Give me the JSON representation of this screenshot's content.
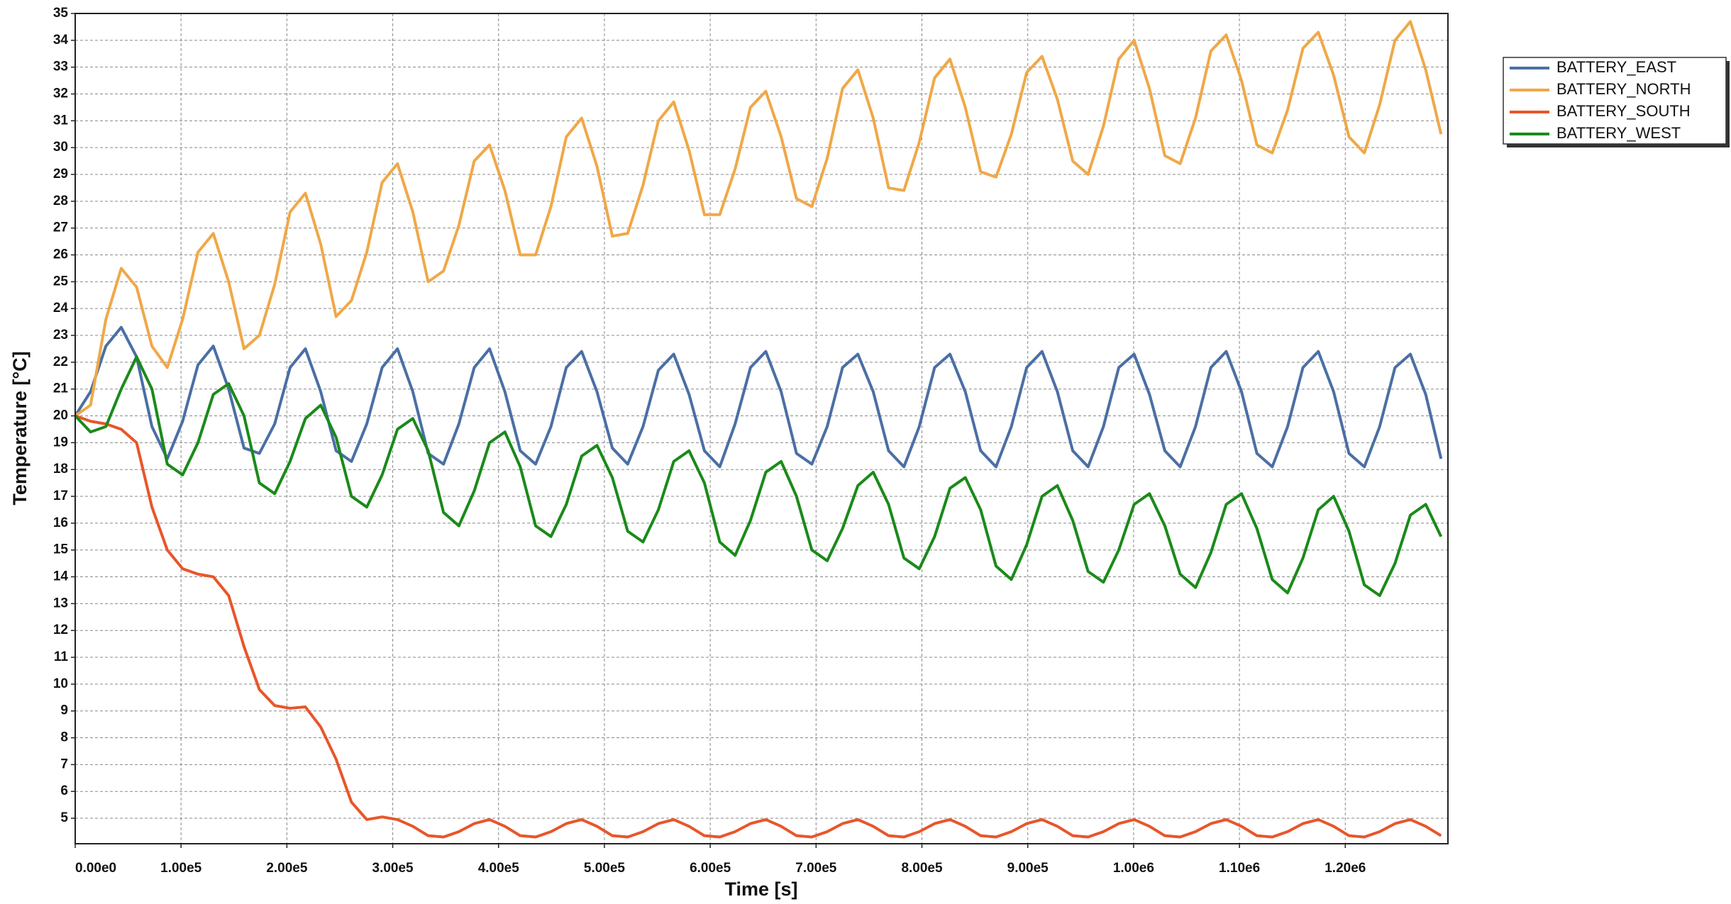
{
  "chart_data": {
    "type": "line",
    "xlabel": "Time [s]",
    "ylabel": "Temperature [°C]",
    "xlim": [
      0,
      1297000
    ],
    "ylim": [
      4.05,
      35
    ],
    "xticks": [
      {
        "value": 0,
        "label": "0.00e0"
      },
      {
        "value": 100000,
        "label": "1.00e5"
      },
      {
        "value": 200000,
        "label": "2.00e5"
      },
      {
        "value": 300000,
        "label": "3.00e5"
      },
      {
        "value": 400000,
        "label": "4.00e5"
      },
      {
        "value": 500000,
        "label": "5.00e5"
      },
      {
        "value": 600000,
        "label": "6.00e5"
      },
      {
        "value": 700000,
        "label": "7.00e5"
      },
      {
        "value": 800000,
        "label": "8.00e5"
      },
      {
        "value": 900000,
        "label": "9.00e5"
      },
      {
        "value": 1000000,
        "label": "1.00e6"
      },
      {
        "value": 1100000,
        "label": "1.10e6"
      },
      {
        "value": 1200000,
        "label": "1.20e6"
      }
    ],
    "yticks": [
      5,
      6,
      7,
      8,
      9,
      10,
      11,
      12,
      13,
      14,
      15,
      16,
      17,
      18,
      19,
      20,
      21,
      22,
      23,
      24,
      25,
      26,
      27,
      28,
      29,
      30,
      31,
      32,
      33,
      34,
      35
    ],
    "grid": true,
    "legend": "upper right outside",
    "x": [
      0,
      14500,
      29000,
      43500,
      58000,
      72500,
      87000,
      101500,
      116000,
      130500,
      145000,
      159500,
      174000,
      188500,
      203000,
      217500,
      232000,
      246500,
      261000,
      275500,
      290000,
      304500,
      319000,
      333500,
      348000,
      362500,
      377000,
      391500,
      406000,
      420500,
      435000,
      449500,
      464000,
      478500,
      493000,
      507500,
      522000,
      536500,
      551000,
      565500,
      580000,
      594500,
      609000,
      623500,
      638000,
      652500,
      667000,
      681500,
      696000,
      710500,
      725000,
      739500,
      754000,
      768500,
      783000,
      797500,
      812000,
      826500,
      841000,
      855500,
      870000,
      884500,
      899000,
      913500,
      928000,
      942500,
      957000,
      971500,
      986000,
      1000500,
      1015000,
      1029500,
      1044000,
      1058500,
      1073000,
      1087500,
      1102000,
      1116500,
      1131000,
      1145500,
      1160000,
      1174500,
      1189000,
      1203500,
      1218000,
      1232500,
      1247000,
      1261500,
      1276000,
      1290500
    ],
    "series": [
      {
        "name": "BATTERY_EAST",
        "color": "#4a6fa5",
        "values": [
          20,
          20.9,
          22.6,
          23.3,
          22.2,
          19.6,
          18.4,
          19.8,
          21.9,
          22.6,
          21.0,
          18.8,
          18.6,
          19.7,
          21.8,
          22.5,
          20.9,
          18.7,
          18.3,
          19.7,
          21.8,
          22.5,
          20.9,
          18.6,
          18.2,
          19.7,
          21.8,
          22.5,
          20.9,
          18.7,
          18.2,
          19.6,
          21.8,
          22.4,
          20.9,
          18.8,
          18.2,
          19.6,
          21.7,
          22.3,
          20.8,
          18.7,
          18.1,
          19.7,
          21.8,
          22.4,
          20.9,
          18.6,
          18.2,
          19.6,
          21.8,
          22.3,
          20.9,
          18.7,
          18.1,
          19.6,
          21.8,
          22.3,
          20.9,
          18.7,
          18.1,
          19.6,
          21.8,
          22.4,
          20.9,
          18.7,
          18.1,
          19.6,
          21.8,
          22.3,
          20.8,
          18.7,
          18.1,
          19.6,
          21.8,
          22.4,
          20.9,
          18.6,
          18.1,
          19.6,
          21.8,
          22.4,
          20.9,
          18.6,
          18.1,
          19.6,
          21.8,
          22.3,
          20.8,
          18.4
        ]
      },
      {
        "name": "BATTERY_NORTH",
        "color": "#f0a848",
        "values": [
          20,
          20.4,
          23.6,
          25.5,
          24.8,
          22.6,
          21.8,
          23.6,
          26.1,
          26.8,
          25.0,
          22.5,
          23.0,
          24.9,
          27.6,
          28.3,
          26.4,
          23.7,
          24.3,
          26.1,
          28.7,
          29.4,
          27.6,
          25.0,
          25.4,
          27.1,
          29.5,
          30.1,
          28.4,
          26.0,
          26.0,
          27.8,
          30.4,
          31.1,
          29.3,
          26.7,
          26.8,
          28.6,
          31.0,
          31.7,
          29.9,
          27.5,
          27.5,
          29.2,
          31.5,
          32.1,
          30.4,
          28.1,
          27.8,
          29.6,
          32.2,
          32.9,
          31.1,
          28.5,
          28.4,
          30.2,
          32.6,
          33.3,
          31.5,
          29.1,
          28.9,
          30.5,
          32.8,
          33.4,
          31.8,
          29.5,
          29.0,
          30.8,
          33.3,
          34.0,
          32.2,
          29.7,
          29.4,
          31.1,
          33.6,
          34.2,
          32.5,
          30.1,
          29.8,
          31.4,
          33.7,
          34.3,
          32.7,
          30.4,
          29.8,
          31.6,
          34.0,
          34.7,
          32.9,
          30.5
        ]
      },
      {
        "name": "BATTERY_SOUTH",
        "color": "#e8562a",
        "values": [
          20,
          19.8,
          19.7,
          19.5,
          19.0,
          16.6,
          15.0,
          14.3,
          14.1,
          14.0,
          13.3,
          11.4,
          9.8,
          9.2,
          9.1,
          9.15,
          8.4,
          7.2,
          5.6,
          4.95,
          5.05,
          4.95,
          4.7,
          4.35,
          4.3,
          4.5,
          4.8,
          4.95,
          4.7,
          4.35,
          4.3,
          4.5,
          4.8,
          4.95,
          4.7,
          4.35,
          4.3,
          4.5,
          4.8,
          4.95,
          4.7,
          4.35,
          4.3,
          4.5,
          4.8,
          4.95,
          4.7,
          4.35,
          4.3,
          4.5,
          4.8,
          4.95,
          4.7,
          4.35,
          4.3,
          4.5,
          4.8,
          4.95,
          4.7,
          4.35,
          4.3,
          4.5,
          4.8,
          4.95,
          4.7,
          4.35,
          4.3,
          4.5,
          4.8,
          4.95,
          4.7,
          4.35,
          4.3,
          4.5,
          4.8,
          4.95,
          4.7,
          4.35,
          4.3,
          4.5,
          4.8,
          4.95,
          4.7,
          4.35,
          4.3,
          4.5,
          4.8,
          4.95,
          4.7,
          4.35
        ]
      },
      {
        "name": "BATTERY_WEST",
        "color": "#1a8a1a",
        "values": [
          20,
          19.4,
          19.6,
          21.0,
          22.2,
          21.0,
          18.2,
          17.8,
          19.0,
          20.8,
          21.2,
          20.0,
          17.5,
          17.1,
          18.3,
          19.9,
          20.4,
          19.2,
          17.0,
          16.6,
          17.8,
          19.5,
          19.9,
          18.7,
          16.4,
          15.9,
          17.2,
          19.0,
          19.4,
          18.1,
          15.9,
          15.5,
          16.7,
          18.5,
          18.9,
          17.7,
          15.7,
          15.3,
          16.5,
          18.3,
          18.7,
          17.5,
          15.3,
          14.8,
          16.1,
          17.9,
          18.3,
          17.0,
          15.0,
          14.6,
          15.8,
          17.4,
          17.9,
          16.7,
          14.7,
          14.3,
          15.5,
          17.3,
          17.7,
          16.5,
          14.4,
          13.9,
          15.2,
          17.0,
          17.4,
          16.1,
          14.2,
          13.8,
          15.0,
          16.7,
          17.1,
          15.9,
          14.1,
          13.6,
          14.9,
          16.7,
          17.1,
          15.8,
          13.9,
          13.4,
          14.7,
          16.5,
          17.0,
          15.7,
          13.7,
          13.3,
          14.5,
          16.3,
          16.7,
          15.5
        ]
      }
    ]
  }
}
